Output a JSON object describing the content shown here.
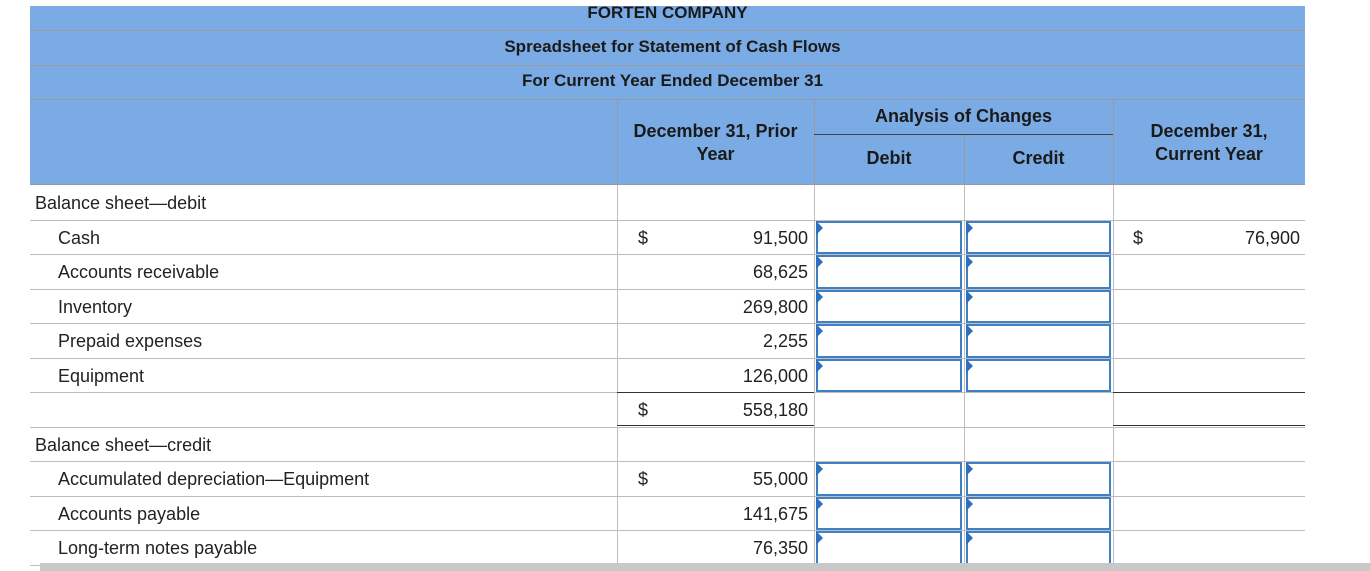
{
  "header": {
    "company": "FORTEN COMPANY",
    "title": "Spreadsheet for Statement of Cash Flows",
    "subtitle": "For Current Year Ended December 31"
  },
  "columns": {
    "prior": "December 31, Prior Year",
    "analysis": "Analysis of Changes",
    "debit": "Debit",
    "credit": "Credit",
    "current": "December 31, Current Year"
  },
  "sections": [
    {
      "title": "Balance sheet—debit",
      "items": [
        {
          "label": "Cash",
          "prior_symbol": "$",
          "prior": "91,500",
          "current_symbol": "$",
          "current": "76,900"
        },
        {
          "label": "Accounts receivable",
          "prior": "68,625"
        },
        {
          "label": "Inventory",
          "prior": "269,800"
        },
        {
          "label": "Prepaid expenses",
          "prior": "2,255"
        },
        {
          "label": "Equipment",
          "prior": "126,000"
        }
      ],
      "total": {
        "prior_symbol": "$",
        "prior": "558,180"
      }
    },
    {
      "title": "Balance sheet—credit",
      "items": [
        {
          "label": "Accumulated depreciation—Equipment",
          "prior_symbol": "$",
          "prior": "55,000"
        },
        {
          "label": "Accounts payable",
          "prior": "141,675"
        },
        {
          "label": "Long-term notes payable",
          "prior": "76,350"
        }
      ]
    }
  ]
}
